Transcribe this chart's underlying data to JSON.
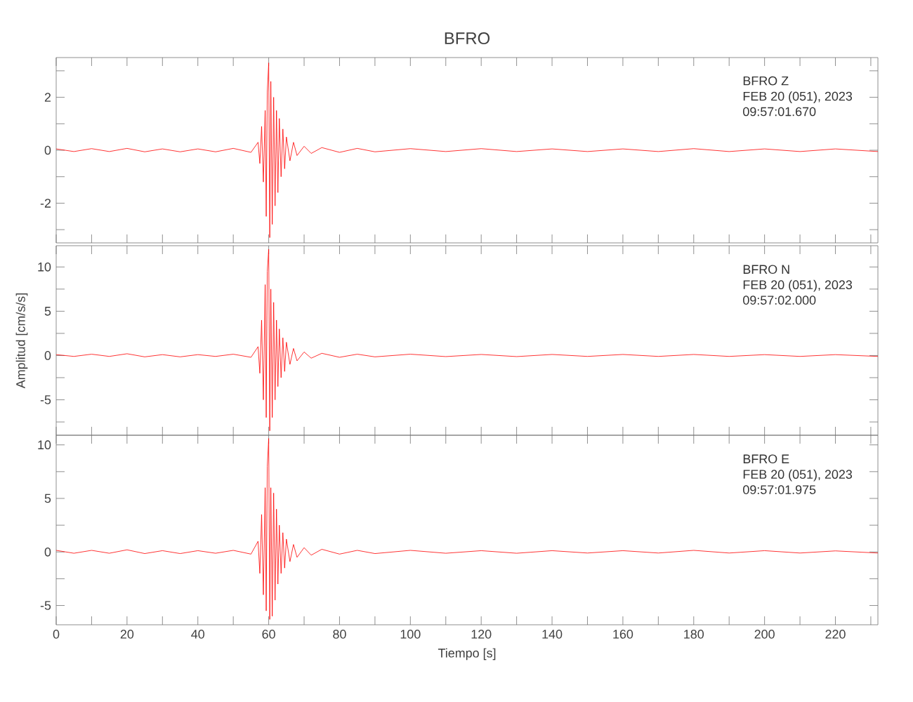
{
  "chart_data": [
    {
      "type": "line",
      "title": "BFRO",
      "tick_labels": "y",
      "annotations": [
        "BFRO   Z",
        "FEB 20 (051), 2023",
        "09:57:01.670"
      ],
      "xlim": [
        0,
        232
      ],
      "ylim": [
        -3.5,
        3.5
      ],
      "xticks": [
        0,
        {
          "value": 10,
          "label": null
        },
        20,
        {
          "value": 30,
          "label": null
        },
        40,
        {
          "value": 50,
          "label": null
        },
        60,
        {
          "value": 70,
          "label": null
        },
        80,
        {
          "value": 90,
          "label": null
        },
        100,
        {
          "value": 110,
          "label": null
        },
        120,
        {
          "value": 130,
          "label": null
        },
        140,
        {
          "value": 150,
          "label": null
        },
        160,
        {
          "value": 170,
          "label": null
        },
        180,
        {
          "value": 190,
          "label": null
        },
        200,
        {
          "value": 210,
          "label": null
        },
        220,
        {
          "value": 230,
          "label": null
        }
      ],
      "yticks": [
        {
          "value": -3,
          "label": null
        },
        -2,
        {
          "value": -1,
          "label": null
        },
        0,
        {
          "value": 1,
          "label": null
        },
        2,
        {
          "value": 3,
          "label": null
        }
      ],
      "x": [
        0,
        5,
        10,
        15,
        20,
        25,
        30,
        35,
        40,
        45,
        50,
        55,
        57,
        57.5,
        58,
        58.5,
        59,
        59.3,
        59.6,
        60,
        60.3,
        60.6,
        61,
        61.4,
        61.8,
        62.2,
        62.6,
        63,
        63.5,
        64,
        64.5,
        65,
        66,
        67,
        68,
        70,
        72,
        75,
        80,
        85,
        90,
        100,
        110,
        120,
        130,
        140,
        150,
        160,
        170,
        180,
        190,
        200,
        210,
        220,
        232
      ],
      "series": [
        {
          "color": "#ff0000",
          "values": [
            0.05,
            -0.05,
            0.06,
            -0.05,
            0.07,
            -0.06,
            0.05,
            -0.06,
            0.05,
            -0.06,
            0.07,
            -0.08,
            0.3,
            -0.5,
            0.9,
            -1.2,
            1.5,
            -2.5,
            2.2,
            3.3,
            -3.3,
            2.6,
            -2.8,
            2.0,
            -2.1,
            1.5,
            -1.6,
            1.2,
            -1.0,
            0.8,
            -0.7,
            0.5,
            -0.4,
            0.3,
            -0.2,
            0.15,
            -0.12,
            0.1,
            -0.08,
            0.07,
            -0.06,
            0.06,
            -0.05,
            0.06,
            -0.05,
            0.05,
            -0.05,
            0.05,
            -0.05,
            0.06,
            -0.05,
            0.05,
            -0.05,
            0.05,
            -0.05
          ]
        }
      ]
    },
    {
      "type": "line",
      "ylabel": "Amplitud [cm/s/s]",
      "tick_labels": "y",
      "annotations": [
        "BFRO   N",
        "FEB 20 (051), 2023",
        "09:57:02.000"
      ],
      "xlim": [
        0,
        232
      ],
      "ylim": [
        -9,
        12.4
      ],
      "xticks": [
        0,
        {
          "value": 10,
          "label": null
        },
        20,
        {
          "value": 30,
          "label": null
        },
        40,
        {
          "value": 50,
          "label": null
        },
        60,
        {
          "value": 70,
          "label": null
        },
        80,
        {
          "value": 90,
          "label": null
        },
        100,
        {
          "value": 110,
          "label": null
        },
        120,
        {
          "value": 130,
          "label": null
        },
        140,
        {
          "value": 150,
          "label": null
        },
        160,
        {
          "value": 170,
          "label": null
        },
        180,
        {
          "value": 190,
          "label": null
        },
        200,
        {
          "value": 210,
          "label": null
        },
        220,
        {
          "value": 230,
          "label": null
        }
      ],
      "yticks": [
        {
          "value": -7.5,
          "label": null
        },
        -5,
        {
          "value": -2.5,
          "label": null
        },
        0,
        {
          "value": 2.5,
          "label": null
        },
        5,
        {
          "value": 7.5,
          "label": null
        },
        10
      ],
      "x": [
        0,
        5,
        10,
        15,
        20,
        25,
        30,
        35,
        40,
        45,
        50,
        55,
        57,
        57.5,
        58,
        58.5,
        59,
        59.3,
        59.6,
        60,
        60.3,
        60.6,
        61,
        61.4,
        61.8,
        62.2,
        62.6,
        63,
        63.5,
        64,
        64.5,
        65,
        66,
        67,
        68,
        70,
        72,
        75,
        80,
        85,
        90,
        100,
        110,
        120,
        130,
        140,
        150,
        160,
        170,
        180,
        190,
        200,
        210,
        220,
        232
      ],
      "series": [
        {
          "color": "#ff0000",
          "values": [
            0.1,
            -0.1,
            0.15,
            -0.1,
            0.2,
            -0.15,
            0.1,
            -0.15,
            0.1,
            -0.1,
            0.15,
            -0.2,
            1.0,
            -2.0,
            4.0,
            -5.0,
            8.0,
            -7.0,
            9.5,
            12.0,
            -8.5,
            7.5,
            -7.0,
            6.0,
            -5.0,
            4.0,
            -3.5,
            3.0,
            -2.5,
            2.0,
            -1.8,
            1.5,
            -1.0,
            0.8,
            -0.6,
            0.4,
            -0.3,
            0.25,
            -0.2,
            0.15,
            -0.15,
            0.15,
            -0.12,
            0.12,
            -0.12,
            0.12,
            -0.1,
            0.12,
            -0.1,
            0.12,
            -0.1,
            0.1,
            -0.1,
            0.1,
            -0.1
          ]
        }
      ]
    },
    {
      "type": "line",
      "xlabel": "Tiempo [s]",
      "annotations": [
        "BFRO   E",
        "FEB 20 (051), 2023",
        "09:57:01.975"
      ],
      "xlim": [
        0,
        232
      ],
      "ylim": [
        -6.8,
        10.9
      ],
      "xticks": [
        0,
        {
          "value": 10,
          "label": null
        },
        20,
        {
          "value": 30,
          "label": null
        },
        40,
        {
          "value": 50,
          "label": null
        },
        60,
        {
          "value": 70,
          "label": null
        },
        80,
        {
          "value": 90,
          "label": null
        },
        100,
        {
          "value": 110,
          "label": null
        },
        120,
        {
          "value": 130,
          "label": null
        },
        140,
        {
          "value": 150,
          "label": null
        },
        160,
        {
          "value": 170,
          "label": null
        },
        180,
        {
          "value": 190,
          "label": null
        },
        200,
        {
          "value": 210,
          "label": null
        },
        220,
        {
          "value": 230,
          "label": null
        }
      ],
      "yticks": [
        -5,
        {
          "value": -2.5,
          "label": null
        },
        0,
        {
          "value": 2.5,
          "label": null
        },
        5,
        {
          "value": 7.5,
          "label": null
        },
        10
      ],
      "x": [
        0,
        5,
        10,
        15,
        20,
        25,
        30,
        35,
        40,
        45,
        50,
        55,
        57,
        57.5,
        58,
        58.5,
        59,
        59.3,
        59.6,
        60,
        60.3,
        60.6,
        61,
        61.4,
        61.8,
        62.2,
        62.6,
        63,
        63.5,
        64,
        64.5,
        65,
        66,
        67,
        68,
        70,
        72,
        75,
        80,
        85,
        90,
        100,
        110,
        120,
        130,
        140,
        150,
        160,
        170,
        180,
        190,
        200,
        210,
        220,
        232
      ],
      "series": [
        {
          "color": "#ff0000",
          "values": [
            0.15,
            -0.12,
            0.15,
            -0.12,
            0.2,
            -0.15,
            0.12,
            -0.15,
            0.12,
            -0.12,
            0.15,
            -0.2,
            1.0,
            -2.0,
            3.5,
            -4.0,
            6.0,
            -5.5,
            8.0,
            10.6,
            -6.3,
            6.0,
            -6.0,
            5.5,
            -4.5,
            4.0,
            -3.0,
            2.5,
            -2.0,
            1.8,
            -1.5,
            1.2,
            -0.9,
            0.7,
            -0.5,
            0.4,
            -0.3,
            0.25,
            -0.2,
            0.15,
            -0.15,
            0.15,
            -0.12,
            0.12,
            -0.12,
            0.12,
            -0.1,
            0.12,
            -0.1,
            0.15,
            -0.1,
            0.12,
            -0.1,
            0.1,
            -0.1
          ]
        }
      ]
    }
  ]
}
